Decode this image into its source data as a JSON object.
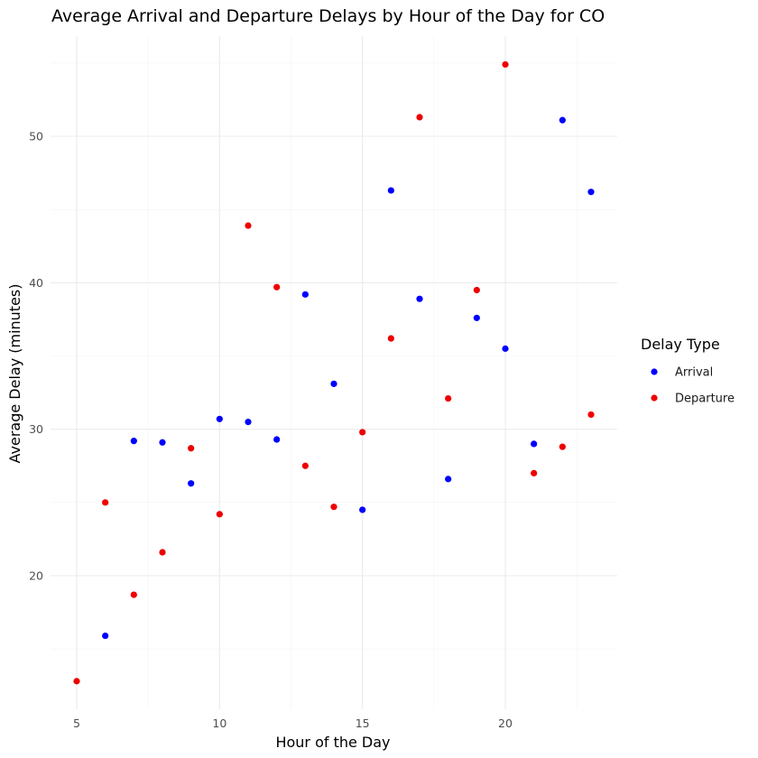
{
  "chart_data": {
    "type": "scatter",
    "title": "Average Arrival and Departure Delays by Hour of the Day for CO",
    "xlabel": "Hour of the Day",
    "ylabel": "Average Delay (minutes)",
    "xlim": [
      5,
      23
    ],
    "ylim": [
      12.8,
      54.9
    ],
    "x_ticks": [
      5,
      10,
      15,
      20
    ],
    "y_ticks": [
      20,
      30,
      40,
      50
    ],
    "grid": true,
    "legend": {
      "title": "Delay Type",
      "position": "right"
    },
    "series": [
      {
        "name": "Arrival",
        "color": "#0000ff",
        "points": [
          [
            6,
            15.9
          ],
          [
            7,
            29.2
          ],
          [
            8,
            29.1
          ],
          [
            9,
            26.3
          ],
          [
            10,
            30.7
          ],
          [
            11,
            30.5
          ],
          [
            12,
            29.3
          ],
          [
            13,
            39.2
          ],
          [
            14,
            33.1
          ],
          [
            15,
            24.5
          ],
          [
            16,
            46.3
          ],
          [
            17,
            38.9
          ],
          [
            18,
            26.6
          ],
          [
            19,
            37.6
          ],
          [
            20,
            35.5
          ],
          [
            21,
            29.0
          ],
          [
            22,
            51.1
          ],
          [
            23,
            46.2
          ]
        ]
      },
      {
        "name": "Departure",
        "color": "#ee0000",
        "points": [
          [
            5,
            12.8
          ],
          [
            6,
            25.0
          ],
          [
            7,
            18.7
          ],
          [
            8,
            21.6
          ],
          [
            9,
            28.7
          ],
          [
            10,
            24.2
          ],
          [
            11,
            43.9
          ],
          [
            12,
            39.7
          ],
          [
            13,
            27.5
          ],
          [
            14,
            24.7
          ],
          [
            15,
            29.8
          ],
          [
            16,
            36.2
          ],
          [
            17,
            51.3
          ],
          [
            18,
            32.1
          ],
          [
            19,
            39.5
          ],
          [
            20,
            54.9
          ],
          [
            21,
            27.0
          ],
          [
            22,
            28.8
          ],
          [
            23,
            31.0
          ]
        ]
      }
    ]
  }
}
